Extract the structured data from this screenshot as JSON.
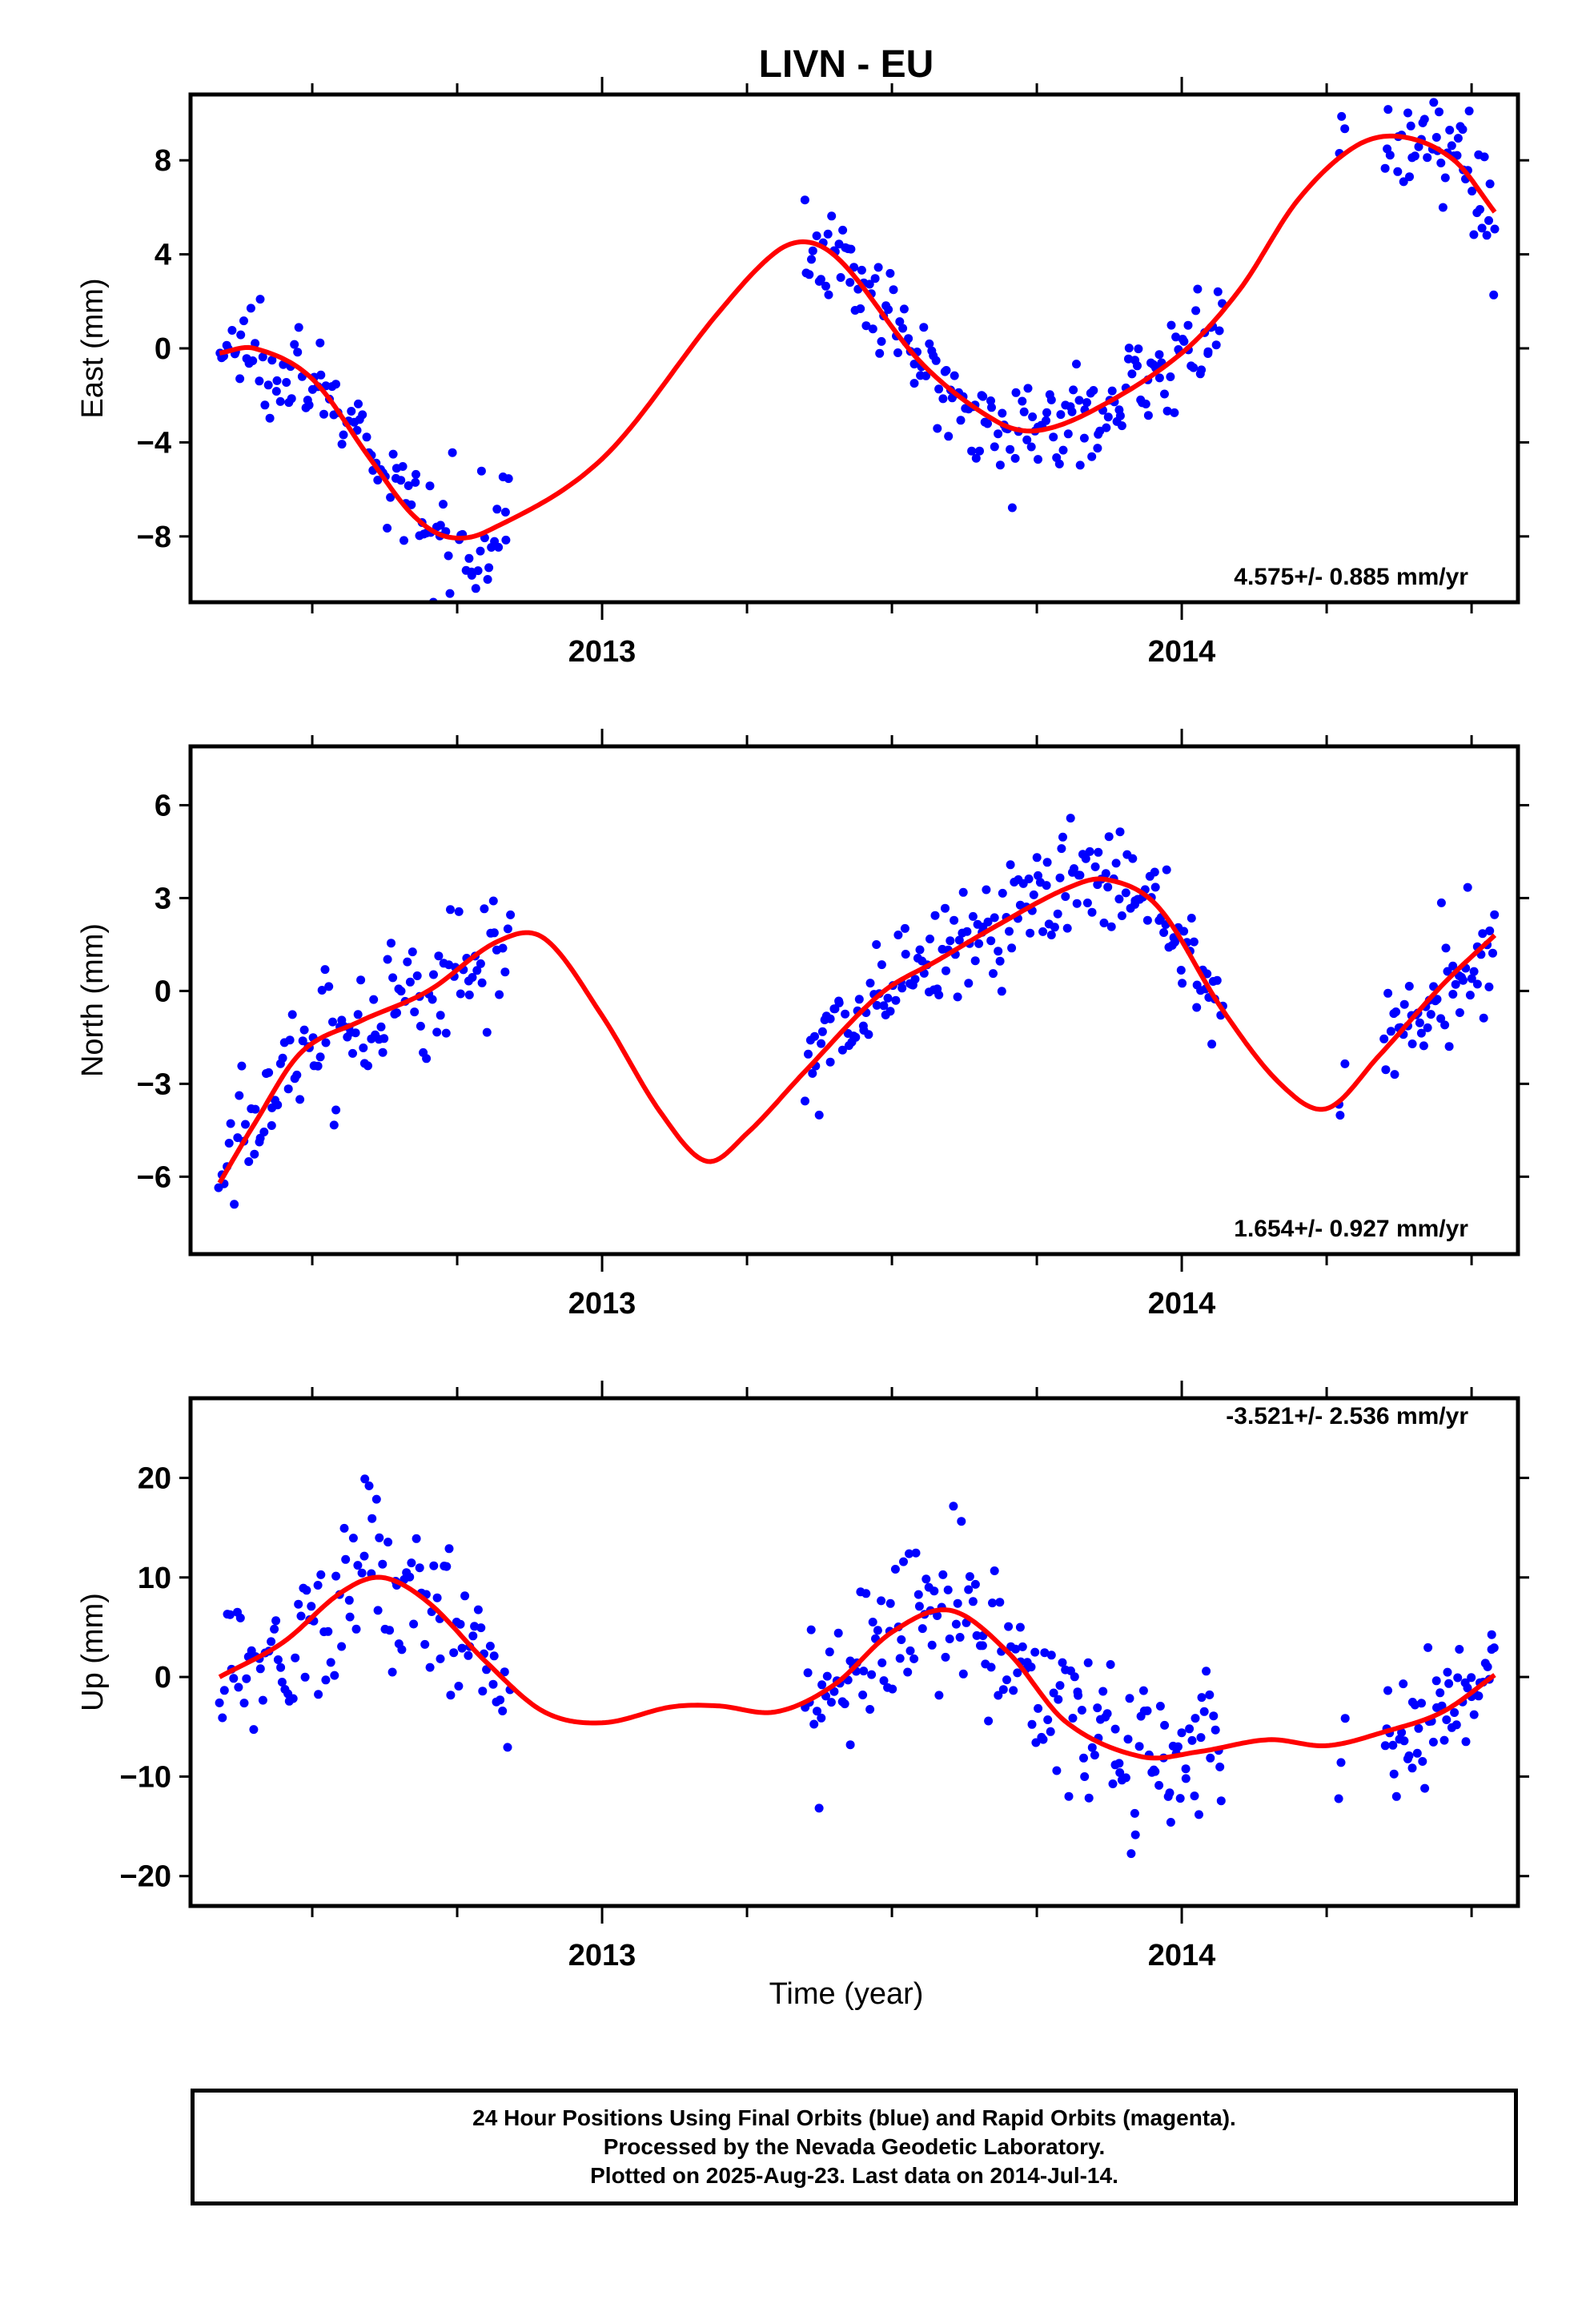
{
  "title": "LIVN - EU",
  "xlabel": "Time (year)",
  "colors": {
    "data": "#0000ff",
    "model": "#ff0000",
    "frame": "#000000"
  },
  "footer": {
    "line1": "24 Hour Positions Using Final Orbits (blue) and Rapid Orbits (magenta).",
    "line2": "Processed by the Nevada Geodetic Laboratory.",
    "line3": "Plotted on 2025-Aug-23. Last data on 2014-Jul-14."
  },
  "chart_data": [
    {
      "type": "scatter",
      "component": "east",
      "ylabel": "East (mm)",
      "rate_label": "4.575+/- 0.885 mm/yr",
      "xlim": [
        2012.29,
        2014.58
      ],
      "ylim": [
        -10.8,
        10.8
      ],
      "yticks": [
        -8,
        -4,
        0,
        4,
        8
      ],
      "xticks_major": [
        2013,
        2014
      ],
      "series": [
        {
          "role": "data",
          "segments": [
            {
              "t0": 2012.34,
              "t1": 2012.84,
              "n": 120,
              "noise": 1.1
            },
            {
              "t0": 2013.35,
              "t1": 2014.07,
              "n": 190,
              "noise": 1.0
            },
            {
              "t0": 2014.27,
              "t1": 2014.28,
              "n": 3,
              "noise": 0.8
            },
            {
              "t0": 2014.35,
              "t1": 2014.54,
              "n": 55,
              "noise": 1.3
            }
          ]
        },
        {
          "role": "model",
          "knots": [
            [
              2012.34,
              -0.2
            ],
            [
              2012.4,
              0.0
            ],
            [
              2012.5,
              -1.3
            ],
            [
              2012.6,
              -4.7
            ],
            [
              2012.67,
              -7.0
            ],
            [
              2012.73,
              -8.0
            ],
            [
              2012.8,
              -7.8
            ],
            [
              2013.0,
              -4.7
            ],
            [
              2013.2,
              1.5
            ],
            [
              2013.3,
              4.1
            ],
            [
              2013.36,
              4.5
            ],
            [
              2013.42,
              3.5
            ],
            [
              2013.55,
              -0.6
            ],
            [
              2013.68,
              -3.1
            ],
            [
              2013.75,
              -3.5
            ],
            [
              2013.85,
              -2.6
            ],
            [
              2014.0,
              -0.2
            ],
            [
              2014.1,
              2.5
            ],
            [
              2014.2,
              6.3
            ],
            [
              2014.3,
              8.6
            ],
            [
              2014.38,
              9.0
            ],
            [
              2014.47,
              8.0
            ],
            [
              2014.54,
              5.8
            ]
          ]
        }
      ]
    },
    {
      "type": "scatter",
      "component": "north",
      "ylabel": "North (mm)",
      "rate_label": "1.654+/- 0.927 mm/yr",
      "xlim": [
        2012.29,
        2014.58
      ],
      "ylim": [
        -8.5,
        7.9
      ],
      "yticks": [
        -6,
        -3,
        0,
        3,
        6
      ],
      "xticks_major": [
        2013,
        2014
      ],
      "series": [
        {
          "role": "data",
          "segments": [
            {
              "t0": 2012.34,
              "t1": 2012.84,
              "n": 120,
              "noise": 1.0
            },
            {
              "t0": 2013.35,
              "t1": 2014.07,
              "n": 190,
              "noise": 1.0
            },
            {
              "t0": 2014.27,
              "t1": 2014.28,
              "n": 3,
              "noise": 0.8
            },
            {
              "t0": 2014.35,
              "t1": 2014.54,
              "n": 55,
              "noise": 1.0
            }
          ]
        },
        {
          "role": "model",
          "knots": [
            [
              2012.34,
              -6.2
            ],
            [
              2012.4,
              -4.3
            ],
            [
              2012.48,
              -2.0
            ],
            [
              2012.58,
              -1.0
            ],
            [
              2012.7,
              0.0
            ],
            [
              2012.82,
              1.6
            ],
            [
              2012.9,
              1.7
            ],
            [
              2013.0,
              -0.8
            ],
            [
              2013.1,
              -3.9
            ],
            [
              2013.18,
              -5.5
            ],
            [
              2013.25,
              -4.6
            ],
            [
              2013.35,
              -2.6
            ],
            [
              2013.48,
              -0.1
            ],
            [
              2013.58,
              1.0
            ],
            [
              2013.68,
              2.1
            ],
            [
              2013.8,
              3.3
            ],
            [
              2013.87,
              3.6
            ],
            [
              2013.96,
              2.7
            ],
            [
              2014.07,
              -0.6
            ],
            [
              2014.17,
              -3.0
            ],
            [
              2014.25,
              -3.8
            ],
            [
              2014.34,
              -2.1
            ],
            [
              2014.45,
              0.2
            ],
            [
              2014.54,
              1.8
            ]
          ]
        }
      ]
    },
    {
      "type": "scatter",
      "component": "up",
      "ylabel": "Up (mm)",
      "rate_label": "-3.521+/- 2.536 mm/yr",
      "xlim": [
        2012.29,
        2014.58
      ],
      "ylim": [
        -23,
        28
      ],
      "yticks": [
        -20,
        -10,
        0,
        10,
        20
      ],
      "xticks_major": [
        2013,
        2014
      ],
      "series": [
        {
          "role": "data",
          "segments": [
            {
              "t0": 2012.34,
              "t1": 2012.84,
              "n": 120,
              "noise": 4.2
            },
            {
              "t0": 2013.35,
              "t1": 2014.07,
              "n": 190,
              "noise": 4.0
            },
            {
              "t0": 2014.27,
              "t1": 2014.28,
              "n": 3,
              "noise": 2.0
            },
            {
              "t0": 2014.35,
              "t1": 2014.54,
              "n": 55,
              "noise": 3.0
            }
          ]
        },
        {
          "role": "model",
          "knots": [
            [
              2012.34,
              0.0
            ],
            [
              2012.45,
              3.5
            ],
            [
              2012.55,
              8.5
            ],
            [
              2012.62,
              10.0
            ],
            [
              2012.7,
              7.5
            ],
            [
              2012.8,
              1.5
            ],
            [
              2012.9,
              -3.5
            ],
            [
              2013.0,
              -4.6
            ],
            [
              2013.12,
              -3.0
            ],
            [
              2013.2,
              -2.9
            ],
            [
              2013.3,
              -3.5
            ],
            [
              2013.4,
              -0.8
            ],
            [
              2013.5,
              4.5
            ],
            [
              2013.6,
              6.7
            ],
            [
              2013.7,
              2.5
            ],
            [
              2013.8,
              -4.5
            ],
            [
              2013.93,
              -8.0
            ],
            [
              2014.03,
              -7.5
            ],
            [
              2014.15,
              -6.3
            ],
            [
              2014.25,
              -6.9
            ],
            [
              2014.35,
              -5.5
            ],
            [
              2014.45,
              -3.5
            ],
            [
              2014.54,
              0.2
            ]
          ]
        }
      ]
    }
  ]
}
